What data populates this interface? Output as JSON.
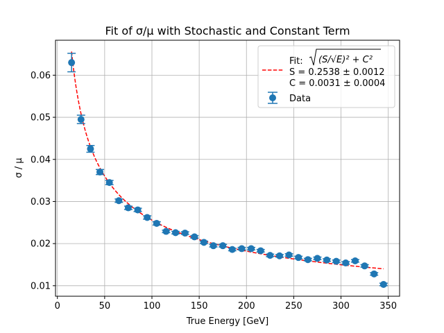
{
  "chart_data": {
    "type": "scatter",
    "title": "Fit of σ/μ with Stochastic and Constant Term",
    "xlabel": "True Energy [GeV]",
    "ylabel": "σ / μ",
    "xlim": [
      -2,
      362
    ],
    "ylim": [
      0.0075,
      0.0683
    ],
    "xticks": [
      0,
      50,
      100,
      150,
      200,
      250,
      300,
      350
    ],
    "yticks": [
      0.01,
      0.02,
      0.03,
      0.04,
      0.05,
      0.06
    ],
    "ytick_labels": [
      "0.01",
      "0.02",
      "0.03",
      "0.04",
      "0.05",
      "0.06"
    ],
    "grid": true,
    "legend_position": "top-right",
    "colors": {
      "data": "#1f77b4",
      "fit": "#ff0000"
    },
    "series": [
      {
        "name": "Data",
        "kind": "errorbar-points",
        "x": [
          15,
          25,
          35,
          45,
          55,
          65,
          75,
          85,
          95,
          105,
          115,
          125,
          135,
          145,
          155,
          165,
          175,
          185,
          195,
          205,
          215,
          225,
          235,
          245,
          255,
          265,
          275,
          285,
          295,
          305,
          315,
          325,
          335,
          345
        ],
        "y": [
          0.063,
          0.0495,
          0.0425,
          0.037,
          0.0345,
          0.0302,
          0.0285,
          0.028,
          0.0262,
          0.0248,
          0.0229,
          0.0226,
          0.0225,
          0.0216,
          0.0203,
          0.0195,
          0.0195,
          0.0186,
          0.0188,
          0.0188,
          0.0183,
          0.0172,
          0.0171,
          0.0173,
          0.0167,
          0.0162,
          0.0165,
          0.0161,
          0.0158,
          0.0154,
          0.0159,
          0.0147,
          0.0128,
          0.0103
        ],
        "yerr": [
          0.0022,
          0.001,
          0.0008,
          0.0006,
          0.0005,
          0.0004,
          0.0004,
          0.0004,
          0.0004,
          0.0004,
          0.0003,
          0.0003,
          0.0003,
          0.0003,
          0.0003,
          0.0003,
          0.0003,
          0.0003,
          0.0003,
          0.0003,
          0.0003,
          0.0003,
          0.0003,
          0.0003,
          0.0003,
          0.0003,
          0.0003,
          0.0003,
          0.0003,
          0.0003,
          0.0003,
          0.0003,
          0.0003,
          0.0003
        ]
      },
      {
        "name": "Fit",
        "kind": "line",
        "style": "dashed",
        "S": 0.2538,
        "C": 0.0031,
        "x_range": [
          15,
          345
        ]
      }
    ],
    "legend": {
      "fit_label_line1_prefix": "Fit: ",
      "fit_label_line1_formula": "(S/√E)² + C²",
      "fit_label_line2": "S = 0.2538 ± 0.0012",
      "fit_label_line3": "C = 0.0031 ± 0.0004",
      "data_label": "Data"
    }
  }
}
